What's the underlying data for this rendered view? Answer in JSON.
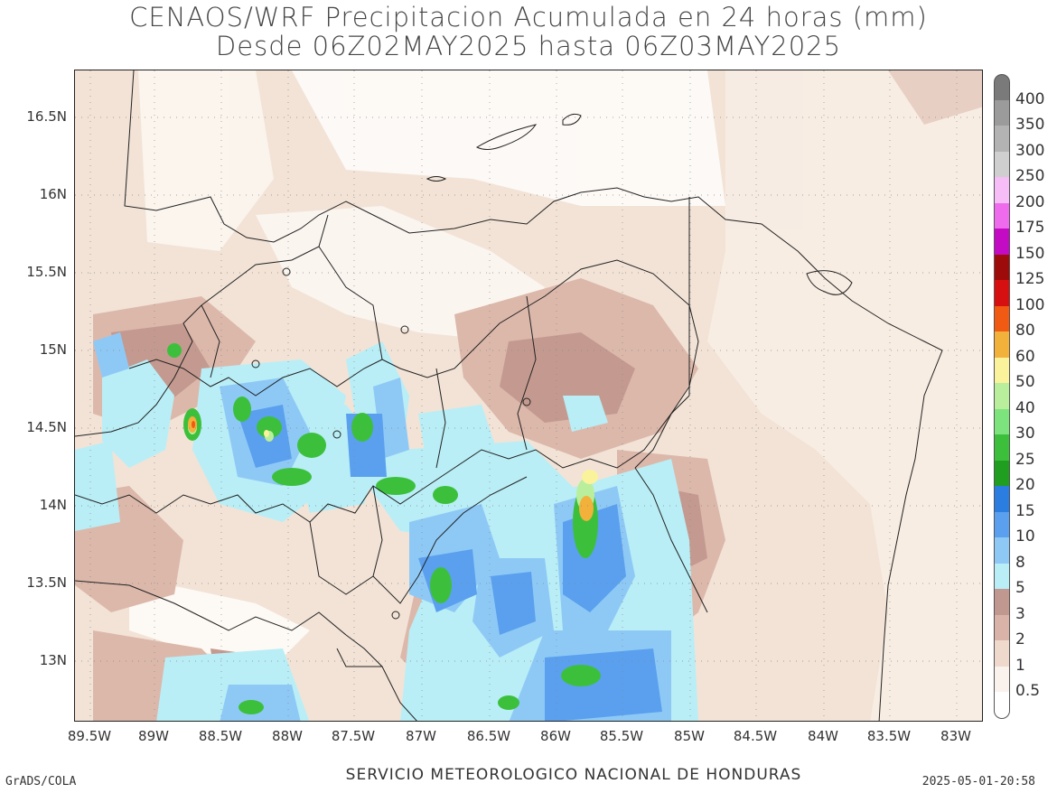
{
  "title": {
    "line1": "CENAOS/WRF Precipitacion Acumulada en 24 horas (mm)",
    "line2": "Desde 06Z02MAY2025 hasta 06Z03MAY2025"
  },
  "axes": {
    "lat_ticks": [
      "16.5N",
      "16N",
      "15.5N",
      "15N",
      "14.5N",
      "14N",
      "13.5N",
      "13N"
    ],
    "lon_ticks": [
      "89.5W",
      "89W",
      "88.5W",
      "88W",
      "87.5W",
      "87W",
      "86.5W",
      "86W",
      "85.5W",
      "85W",
      "84.5W",
      "84W",
      "83.5W",
      "83W"
    ]
  },
  "colorbar": {
    "labels": [
      "400",
      "350",
      "300",
      "250",
      "200",
      "175",
      "150",
      "125",
      "100",
      "80",
      "60",
      "50",
      "40",
      "30",
      "25",
      "20",
      "15",
      "10",
      "8",
      "5",
      "3",
      "2",
      "1",
      "0.5"
    ],
    "colors": [
      "#7a7a7a",
      "#9b9b9b",
      "#b3b3b3",
      "#cfcfcf",
      "#f6bdf6",
      "#ee6bee",
      "#c40bc4",
      "#9e0b0b",
      "#d61010",
      "#f05a12",
      "#f2b13a",
      "#fbf29c",
      "#b9ef9c",
      "#7de37d",
      "#3cc03c",
      "#1f9e1f",
      "#2b7ee0",
      "#5aa0ee",
      "#8ec9f6",
      "#b9eef6",
      "#c19890",
      "#d9b3a8",
      "#efd9cc",
      "#faf2ec",
      "#ffffff"
    ]
  },
  "footer": {
    "left": "GrADS/COLA",
    "center": "SERVICIO METEOROLOGICO NACIONAL DE HONDURAS",
    "right": "2025-05-01-20:58"
  }
}
